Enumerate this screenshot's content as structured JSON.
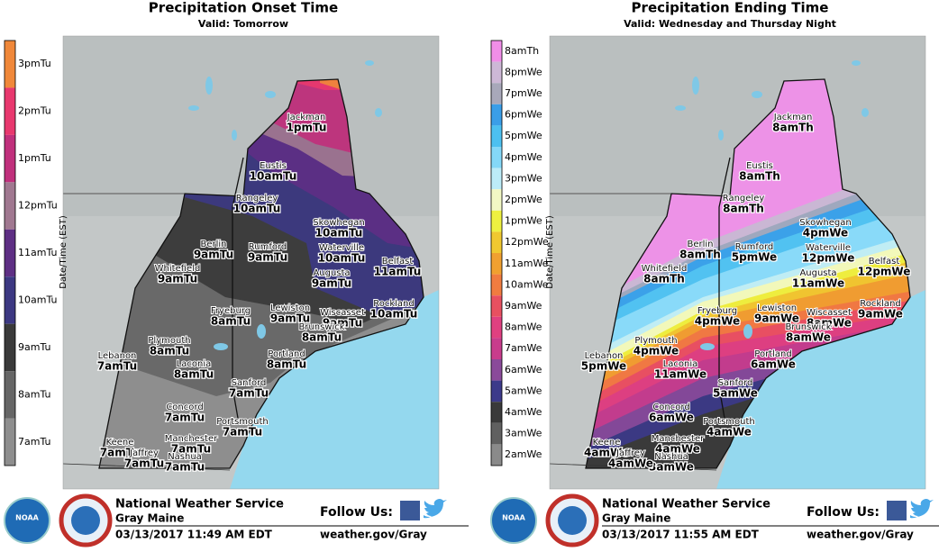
{
  "panels": [
    {
      "title": "Precipitation Onset Time",
      "subtitle": "Valid: Tomorrow",
      "legend_title": "Date/Time (EST)",
      "legend": [
        {
          "label": "3pmTu",
          "color": "#f0883a"
        },
        {
          "label": "2pmTu",
          "color": "#e8386e"
        },
        {
          "label": "1pmTu",
          "color": "#c0307c"
        },
        {
          "label": "12pmTu",
          "color": "#a07890"
        },
        {
          "label": "11amTu",
          "color": "#5e2f84"
        },
        {
          "label": "10amTu",
          "color": "#3c3882"
        },
        {
          "label": "9amTu",
          "color": "#3a3a3a"
        },
        {
          "label": "8amTu",
          "color": "#666666"
        },
        {
          "label": "7amTu",
          "color": "#8e8e8e"
        }
      ],
      "cities": [
        {
          "name": "Jackman",
          "time": "1pmTu"
        },
        {
          "name": "Eustis",
          "time": "10amTu"
        },
        {
          "name": "Rangeley",
          "time": "10amTu"
        },
        {
          "name": "Skowhegan",
          "time": "10amTu"
        },
        {
          "name": "Berlin",
          "time": "9amTu"
        },
        {
          "name": "Rumford",
          "time": "9amTu"
        },
        {
          "name": "Waterville",
          "time": "10amTu"
        },
        {
          "name": "Belfast",
          "time": "11amTu"
        },
        {
          "name": "Whitefield",
          "time": "9amTu"
        },
        {
          "name": "Augusta",
          "time": "9amTu"
        },
        {
          "name": "Rockland",
          "time": "10amTu"
        },
        {
          "name": "Fryeburg",
          "time": "8amTu"
        },
        {
          "name": "Lewiston",
          "time": "9amTu"
        },
        {
          "name": "Wiscasset",
          "time": "9amTu"
        },
        {
          "name": "Brunswick",
          "time": "8amTu"
        },
        {
          "name": "Plymouth",
          "time": "8amTu"
        },
        {
          "name": "Portland",
          "time": "8amTu"
        },
        {
          "name": "Lebanon",
          "time": "7amTu"
        },
        {
          "name": "Laconia",
          "time": "8amTu"
        },
        {
          "name": "Sanford",
          "time": "7amTu"
        },
        {
          "name": "Concord",
          "time": "7amTu"
        },
        {
          "name": "Portsmouth",
          "time": "7amTu"
        },
        {
          "name": "Manchester",
          "time": "7amTu"
        },
        {
          "name": "Keene",
          "time": "7amTu"
        },
        {
          "name": "Nashua",
          "time": "7amTu"
        },
        {
          "name": "Jaffrey",
          "time": "7amTu"
        }
      ],
      "footer": {
        "logo": "NOAA",
        "org": "National Weather Service",
        "office": "Gray Maine",
        "timestamp": "03/13/2017 11:49 AM EDT",
        "follow": "Follow Us:",
        "url": "weather.gov/Gray"
      }
    },
    {
      "title": "Precipitation Ending Time",
      "subtitle": "Valid: Wednesday and Thursday Night",
      "legend_title": "Date/Time (EST)",
      "legend": [
        {
          "label": "8amTh",
          "color": "#f08ee8"
        },
        {
          "label": "8pmWe",
          "color": "#cdb8d6"
        },
        {
          "label": "7pmWe",
          "color": "#a8a8ba"
        },
        {
          "label": "6pmWe",
          "color": "#3a9ee8"
        },
        {
          "label": "5pmWe",
          "color": "#4cc0f0"
        },
        {
          "label": "4pmWe",
          "color": "#84d8f8"
        },
        {
          "label": "3pmWe",
          "color": "#bcecf8"
        },
        {
          "label": "2pmWe",
          "color": "#f2f8c4"
        },
        {
          "label": "1pmWe",
          "color": "#eef040"
        },
        {
          "label": "12pmWe",
          "color": "#f0c830"
        },
        {
          "label": "11amWe",
          "color": "#f0a030"
        },
        {
          "label": "10amWe",
          "color": "#f07c40"
        },
        {
          "label": "9amWe",
          "color": "#e85060"
        },
        {
          "label": "8amWe",
          "color": "#e04080"
        },
        {
          "label": "7amWe",
          "color": "#c83c8c"
        },
        {
          "label": "6amWe",
          "color": "#8a4a9a"
        },
        {
          "label": "5amWe",
          "color": "#3c3a8a"
        },
        {
          "label": "4amWe",
          "color": "#3a3a3a"
        },
        {
          "label": "3amWe",
          "color": "#606060"
        },
        {
          "label": "2amWe",
          "color": "#8a8a8a"
        }
      ],
      "cities": [
        {
          "name": "Jackman",
          "time": "8amTh"
        },
        {
          "name": "Eustis",
          "time": "8amTh"
        },
        {
          "name": "Rangeley",
          "time": "8amTh"
        },
        {
          "name": "Skowhegan",
          "time": "4pmWe"
        },
        {
          "name": "Berlin",
          "time": "8amTh"
        },
        {
          "name": "Rumford",
          "time": "5pmWe"
        },
        {
          "name": "Waterville",
          "time": "12pmWe"
        },
        {
          "name": "Belfast",
          "time": "12pmWe"
        },
        {
          "name": "Whitefield",
          "time": "8amTh"
        },
        {
          "name": "Augusta",
          "time": "11amWe"
        },
        {
          "name": "Rockland",
          "time": "9amWe"
        },
        {
          "name": "Fryeburg",
          "time": "4pmWe"
        },
        {
          "name": "Lewiston",
          "time": "9amWe"
        },
        {
          "name": "Wiscasset",
          "time": "8amWe"
        },
        {
          "name": "Brunswick",
          "time": "8amWe"
        },
        {
          "name": "Plymouth",
          "time": "4pmWe"
        },
        {
          "name": "Portland",
          "time": "6amWe"
        },
        {
          "name": "Lebanon",
          "time": "5pmWe"
        },
        {
          "name": "Laconia",
          "time": "11amWe"
        },
        {
          "name": "Sanford",
          "time": "5amWe"
        },
        {
          "name": "Concord",
          "time": "6amWe"
        },
        {
          "name": "Portsmouth",
          "time": "4amWe"
        },
        {
          "name": "Manchester",
          "time": "4amWe"
        },
        {
          "name": "Keene",
          "time": "4amWe"
        },
        {
          "name": "Nashua",
          "time": "3amWe"
        },
        {
          "name": "Jaffrey",
          "time": "4amWe"
        }
      ],
      "footer": {
        "logo": "NOAA",
        "org": "National Weather Service",
        "office": "Gray Maine",
        "timestamp": "03/13/2017 11:55 AM EDT",
        "follow": "Follow Us:",
        "url": "weather.gov/Gray"
      }
    }
  ]
}
